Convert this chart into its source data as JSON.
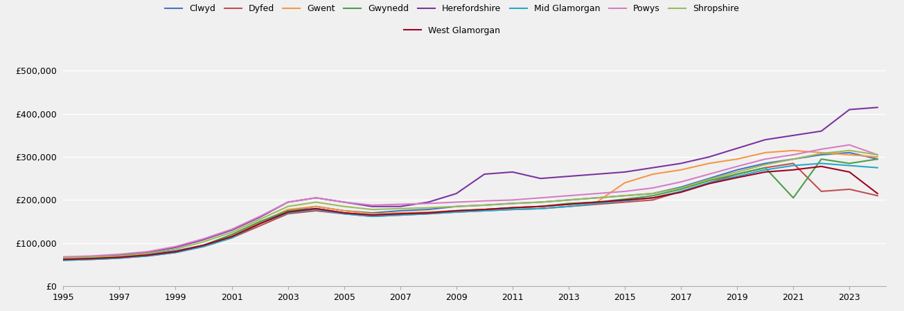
{
  "series": {
    "Clwyd": {
      "color": "#4472C4",
      "values": [
        65000,
        67000,
        70000,
        75000,
        82000,
        95000,
        115000,
        145000,
        175000,
        185000,
        175000,
        170000,
        175000,
        178000,
        185000,
        188000,
        192000,
        195000,
        200000,
        205000,
        210000,
        215000,
        230000,
        250000,
        270000,
        285000,
        295000,
        305000,
        310000,
        295000
      ]
    },
    "Dyfed": {
      "color": "#C0504D",
      "values": [
        60000,
        62000,
        65000,
        70000,
        78000,
        92000,
        112000,
        140000,
        168000,
        175000,
        168000,
        162000,
        165000,
        168000,
        172000,
        175000,
        178000,
        180000,
        185000,
        190000,
        195000,
        200000,
        220000,
        240000,
        260000,
        275000,
        285000,
        220000,
        225000,
        210000
      ]
    },
    "Gwent": {
      "color": "#F79646",
      "values": [
        62000,
        64000,
        67000,
        72000,
        80000,
        95000,
        118000,
        148000,
        178000,
        185000,
        175000,
        168000,
        170000,
        172000,
        175000,
        178000,
        182000,
        185000,
        190000,
        195000,
        240000,
        260000,
        270000,
        285000,
        295000,
        310000,
        315000,
        310000,
        305000,
        300000
      ]
    },
    "Gwynedd": {
      "color": "#4B9E4B",
      "values": [
        62000,
        64000,
        67000,
        72000,
        80000,
        95000,
        120000,
        150000,
        175000,
        180000,
        170000,
        165000,
        168000,
        170000,
        175000,
        178000,
        182000,
        185000,
        192000,
        195000,
        202000,
        210000,
        225000,
        245000,
        260000,
        275000,
        205000,
        295000,
        285000,
        295000
      ]
    },
    "Herefordshire": {
      "color": "#7B33A0",
      "values": [
        65000,
        68000,
        72000,
        78000,
        90000,
        108000,
        130000,
        160000,
        195000,
        205000,
        195000,
        185000,
        185000,
        195000,
        215000,
        260000,
        265000,
        250000,
        255000,
        260000,
        265000,
        275000,
        285000,
        300000,
        320000,
        340000,
        350000,
        360000,
        410000,
        415000
      ]
    },
    "Mid Glamorgan": {
      "color": "#23A9C9",
      "values": [
        60000,
        62000,
        65000,
        70000,
        78000,
        92000,
        112000,
        145000,
        170000,
        178000,
        168000,
        162000,
        165000,
        168000,
        172000,
        175000,
        178000,
        180000,
        185000,
        192000,
        198000,
        205000,
        220000,
        240000,
        255000,
        270000,
        280000,
        285000,
        280000,
        275000
      ]
    },
    "Powys": {
      "color": "#D67DC4",
      "values": [
        68000,
        70000,
        74000,
        80000,
        92000,
        110000,
        132000,
        162000,
        195000,
        205000,
        195000,
        188000,
        190000,
        192000,
        195000,
        198000,
        200000,
        205000,
        210000,
        215000,
        220000,
        228000,
        242000,
        260000,
        278000,
        295000,
        305000,
        318000,
        328000,
        305000
      ]
    },
    "Shropshire": {
      "color": "#9BBB59",
      "values": [
        65000,
        67000,
        70000,
        76000,
        86000,
        103000,
        125000,
        155000,
        185000,
        195000,
        185000,
        178000,
        180000,
        182000,
        185000,
        188000,
        192000,
        195000,
        200000,
        205000,
        210000,
        215000,
        228000,
        248000,
        265000,
        282000,
        295000,
        308000,
        315000,
        305000
      ]
    },
    "West Glamorgan": {
      "color": "#A00020",
      "values": [
        62000,
        64000,
        67000,
        72000,
        80000,
        95000,
        115000,
        145000,
        172000,
        180000,
        170000,
        165000,
        168000,
        170000,
        175000,
        178000,
        182000,
        185000,
        190000,
        195000,
        200000,
        205000,
        218000,
        238000,
        252000,
        265000,
        270000,
        278000,
        265000,
        215000
      ]
    }
  },
  "years": [
    1995,
    1996,
    1997,
    1998,
    1999,
    2000,
    2001,
    2002,
    2003,
    2004,
    2005,
    2006,
    2007,
    2008,
    2009,
    2010,
    2011,
    2012,
    2013,
    2014,
    2015,
    2016,
    2017,
    2018,
    2019,
    2020,
    2021,
    2022,
    2023,
    2024
  ],
  "ylim": [
    0,
    520000
  ],
  "yticks": [
    0,
    100000,
    200000,
    300000,
    400000,
    500000
  ],
  "xticks": [
    1995,
    1997,
    1999,
    2001,
    2003,
    2005,
    2007,
    2009,
    2011,
    2013,
    2015,
    2017,
    2019,
    2021,
    2023
  ],
  "background_color": "#f0f0f0",
  "grid_color": "#ffffff",
  "legend_order": [
    "Clwyd",
    "Dyfed",
    "Gwent",
    "Gwynedd",
    "Herefordshire",
    "Mid Glamorgan",
    "Powys",
    "Shropshire",
    "West Glamorgan"
  ]
}
